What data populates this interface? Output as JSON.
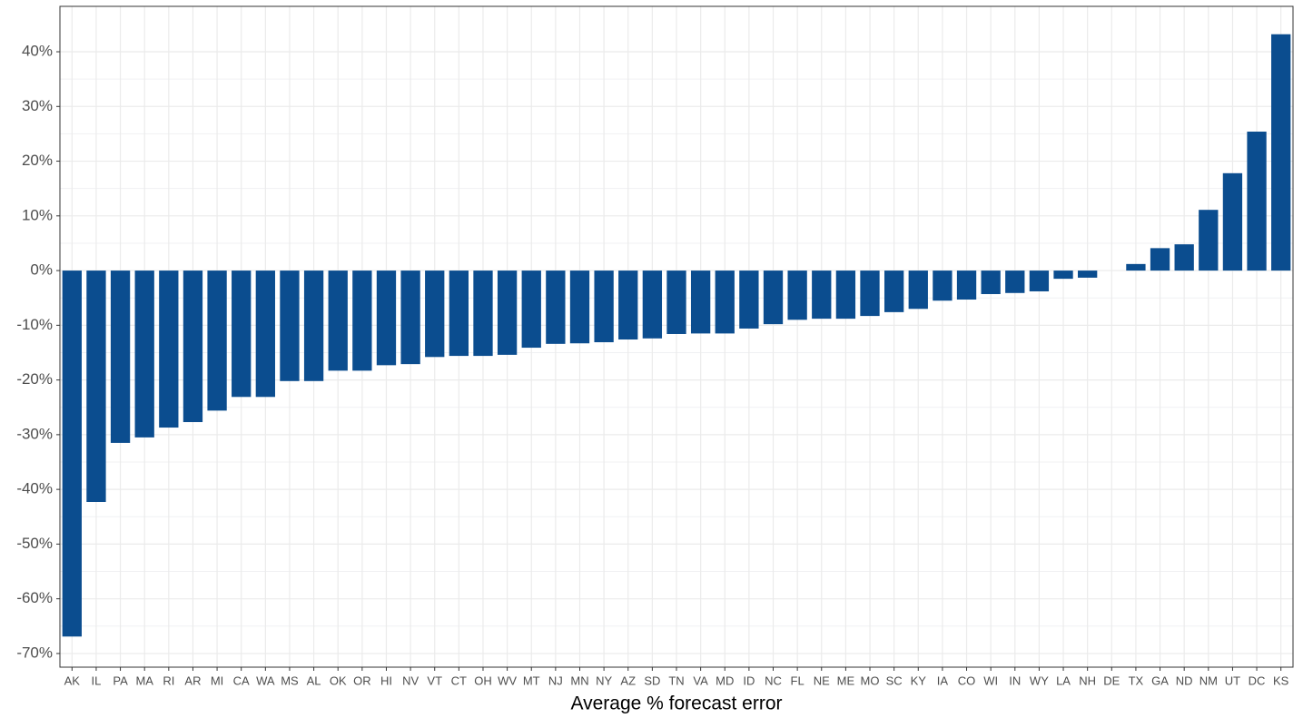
{
  "chart_data": {
    "type": "bar",
    "x_label": "Average % forecast error",
    "categories": [
      "AK",
      "IL",
      "PA",
      "MA",
      "RI",
      "AR",
      "MI",
      "CA",
      "WA",
      "MS",
      "AL",
      "OK",
      "OR",
      "HI",
      "NV",
      "VT",
      "CT",
      "OH",
      "WV",
      "MT",
      "NJ",
      "MN",
      "NY",
      "AZ",
      "SD",
      "TN",
      "VA",
      "MD",
      "ID",
      "NC",
      "FL",
      "NE",
      "ME",
      "MO",
      "SC",
      "KY",
      "IA",
      "CO",
      "WI",
      "IN",
      "WY",
      "LA",
      "NH",
      "DE",
      "TX",
      "GA",
      "ND",
      "NM",
      "UT",
      "DC",
      "KS"
    ],
    "values": [
      -66.9,
      -42.3,
      -31.5,
      -30.5,
      -28.7,
      -27.7,
      -25.6,
      -23.1,
      -23.1,
      -20.2,
      -20.2,
      -18.3,
      -18.3,
      -17.3,
      -17.1,
      -15.8,
      -15.6,
      -15.6,
      -15.4,
      -14.1,
      -13.4,
      -13.3,
      -13.1,
      -12.6,
      -12.4,
      -11.6,
      -11.5,
      -11.5,
      -10.6,
      -9.8,
      -9.0,
      -8.8,
      -8.8,
      -8.3,
      -7.6,
      -7.0,
      -5.5,
      -5.3,
      -4.3,
      -4.1,
      -3.8,
      -1.5,
      -1.3,
      0,
      1.2,
      4.1,
      4.8,
      11.1,
      17.8,
      25.4,
      43.2
    ],
    "color": "#0b4d8f",
    "ylim": [
      -72.5,
      48.3
    ],
    "yticks": [
      {
        "value": -70,
        "label": "-70%"
      },
      {
        "value": -60,
        "label": "-60%"
      },
      {
        "value": -50,
        "label": "-50%"
      },
      {
        "value": -40,
        "label": "-40%"
      },
      {
        "value": -30,
        "label": "-30%"
      },
      {
        "value": -20,
        "label": "-20%"
      },
      {
        "value": -10,
        "label": "-10%"
      },
      {
        "value": 0,
        "label": "0%"
      },
      {
        "value": 10,
        "label": "10%"
      },
      {
        "value": 20,
        "label": "20%"
      },
      {
        "value": 30,
        "label": "30%"
      },
      {
        "value": 40,
        "label": "40%"
      }
    ],
    "grid": true
  }
}
